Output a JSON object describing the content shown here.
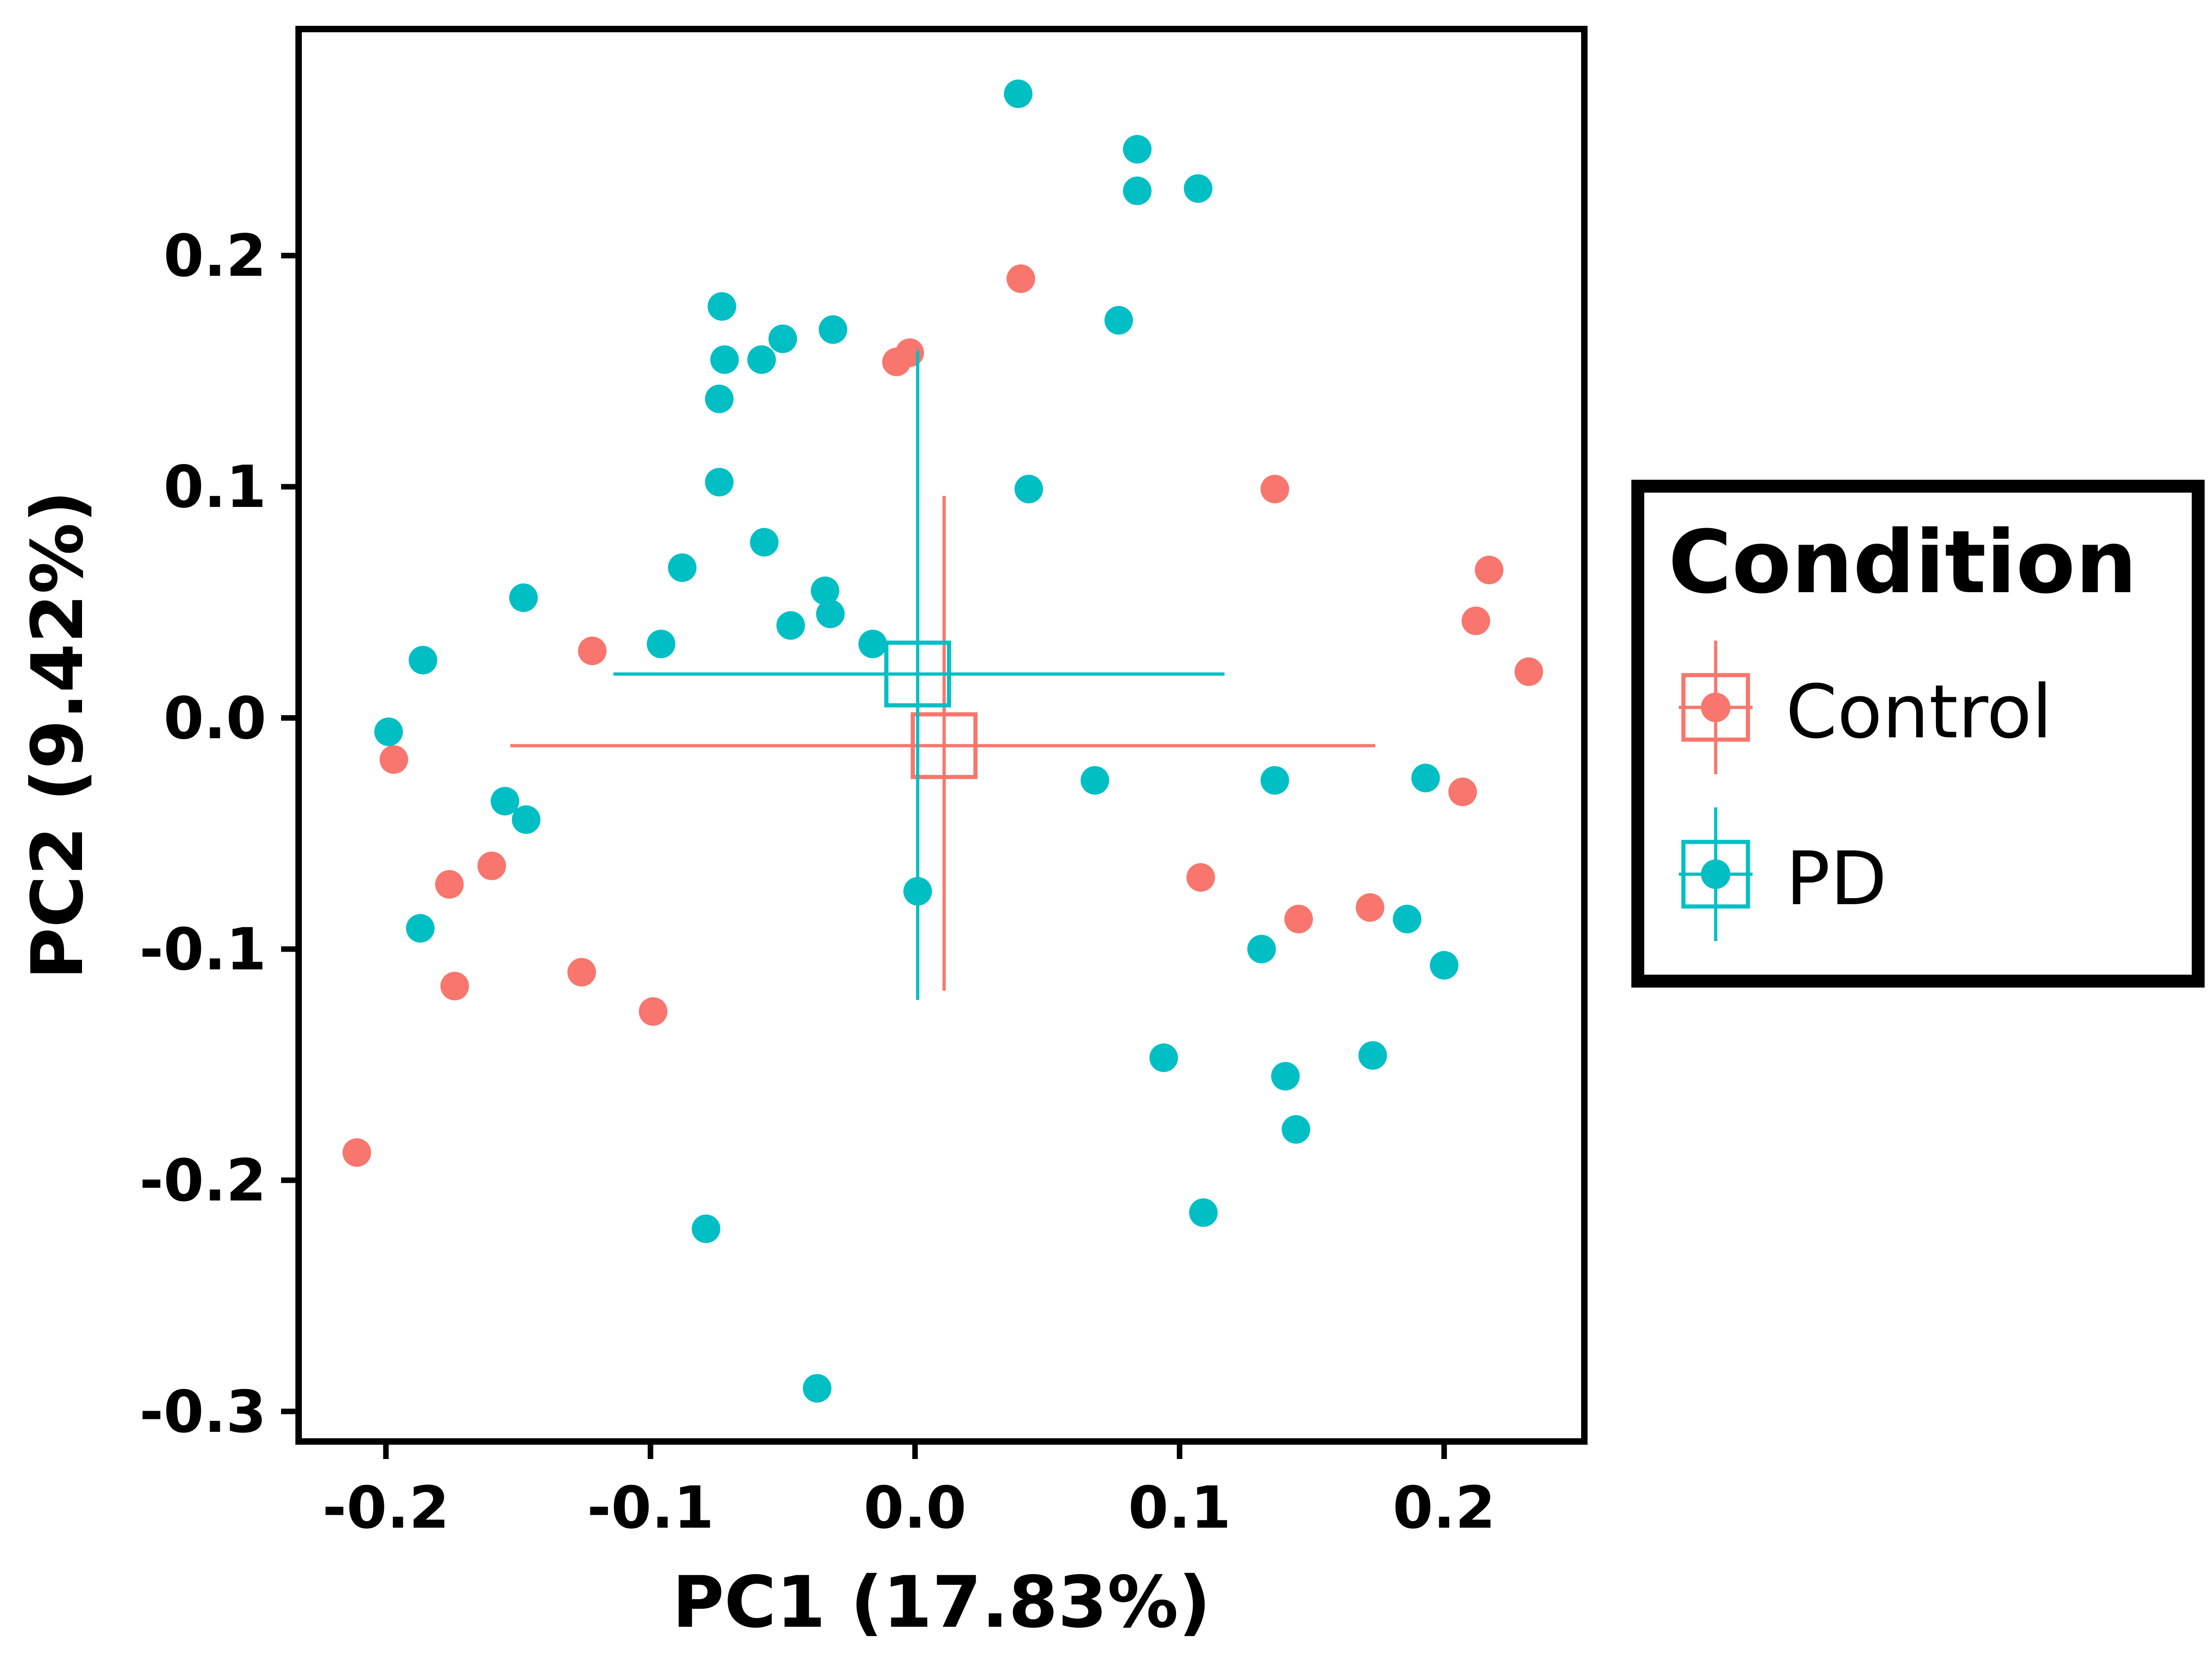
{
  "chart_data": {
    "type": "scatter",
    "xlabel": "PC1 (17.83%)",
    "ylabel": "PC2 (9.42%)",
    "xlim": [
      -0.233,
      0.253
    ],
    "ylim": [
      -0.313,
      0.298
    ],
    "x_ticks": [
      -0.2,
      -0.1,
      0.0,
      0.1,
      0.2
    ],
    "x_tick_labels": [
      "-0.2",
      "-0.1",
      "0.0",
      "0.1",
      "0.2"
    ],
    "y_ticks": [
      -0.3,
      -0.2,
      -0.1,
      0.0,
      0.1,
      0.2
    ],
    "y_tick_labels": [
      "-0.3",
      "-0.2",
      "-0.1",
      "0.0",
      "0.1",
      "0.2"
    ],
    "grid": false,
    "legend": {
      "title": "Condition",
      "placement": "right",
      "entries": [
        "Control",
        "PD"
      ]
    },
    "colors": {
      "Control": "#F8766D",
      "PD": "#00BFC4"
    },
    "series": [
      {
        "name": "Control",
        "points": [
          [
            -0.002,
            0.158
          ],
          [
            -0.007,
            0.154
          ],
          [
            0.04,
            0.19
          ],
          [
            0.136,
            0.099
          ],
          [
            0.217,
            0.064
          ],
          [
            0.212,
            0.042
          ],
          [
            0.232,
            0.02
          ],
          [
            0.207,
            -0.032
          ],
          [
            -0.122,
            0.029
          ],
          [
            -0.197,
            -0.018
          ],
          [
            -0.176,
            -0.072
          ],
          [
            -0.16,
            -0.064
          ],
          [
            -0.174,
            -0.116
          ],
          [
            -0.126,
            -0.11
          ],
          [
            -0.099,
            -0.127
          ],
          [
            -0.211,
            -0.188
          ],
          [
            0.108,
            -0.069
          ],
          [
            0.145,
            -0.087
          ],
          [
            0.172,
            -0.082
          ]
        ],
        "centroid": [
          0.011,
          -0.012
        ],
        "error_x": [
          -0.153,
          0.174
        ],
        "error_y": [
          -0.118,
          0.096
        ]
      },
      {
        "name": "PD",
        "points": [
          [
            0.039,
            0.27
          ],
          [
            0.084,
            0.246
          ],
          [
            0.084,
            0.228
          ],
          [
            0.107,
            0.229
          ],
          [
            0.077,
            0.172
          ],
          [
            0.043,
            0.099
          ],
          [
            -0.073,
            0.178
          ],
          [
            -0.031,
            0.168
          ],
          [
            -0.072,
            0.155
          ],
          [
            -0.058,
            0.155
          ],
          [
            -0.05,
            0.164
          ],
          [
            -0.074,
            0.138
          ],
          [
            -0.074,
            0.102
          ],
          [
            -0.057,
            0.076
          ],
          [
            -0.088,
            0.065
          ],
          [
            -0.034,
            0.055
          ],
          [
            -0.032,
            0.045
          ],
          [
            -0.047,
            0.04
          ],
          [
            -0.016,
            0.032
          ],
          [
            -0.096,
            0.032
          ],
          [
            -0.148,
            0.052
          ],
          [
            -0.186,
            0.025
          ],
          [
            -0.199,
            -0.006
          ],
          [
            -0.155,
            -0.036
          ],
          [
            -0.147,
            -0.044
          ],
          [
            -0.187,
            -0.091
          ],
          [
            -0.079,
            -0.221
          ],
          [
            -0.037,
            -0.29
          ],
          [
            0.001,
            -0.075
          ],
          [
            0.068,
            -0.027
          ],
          [
            0.136,
            -0.027
          ],
          [
            0.193,
            -0.026
          ],
          [
            0.186,
            -0.087
          ],
          [
            0.131,
            -0.1
          ],
          [
            0.2,
            -0.107
          ],
          [
            0.094,
            -0.147
          ],
          [
            0.14,
            -0.155
          ],
          [
            0.173,
            -0.146
          ],
          [
            0.144,
            -0.178
          ],
          [
            0.109,
            -0.214
          ]
        ],
        "centroid": [
          0.001,
          0.019
        ],
        "error_x": [
          -0.114,
          0.117
        ],
        "error_y": [
          -0.122,
          0.159
        ]
      }
    ]
  }
}
